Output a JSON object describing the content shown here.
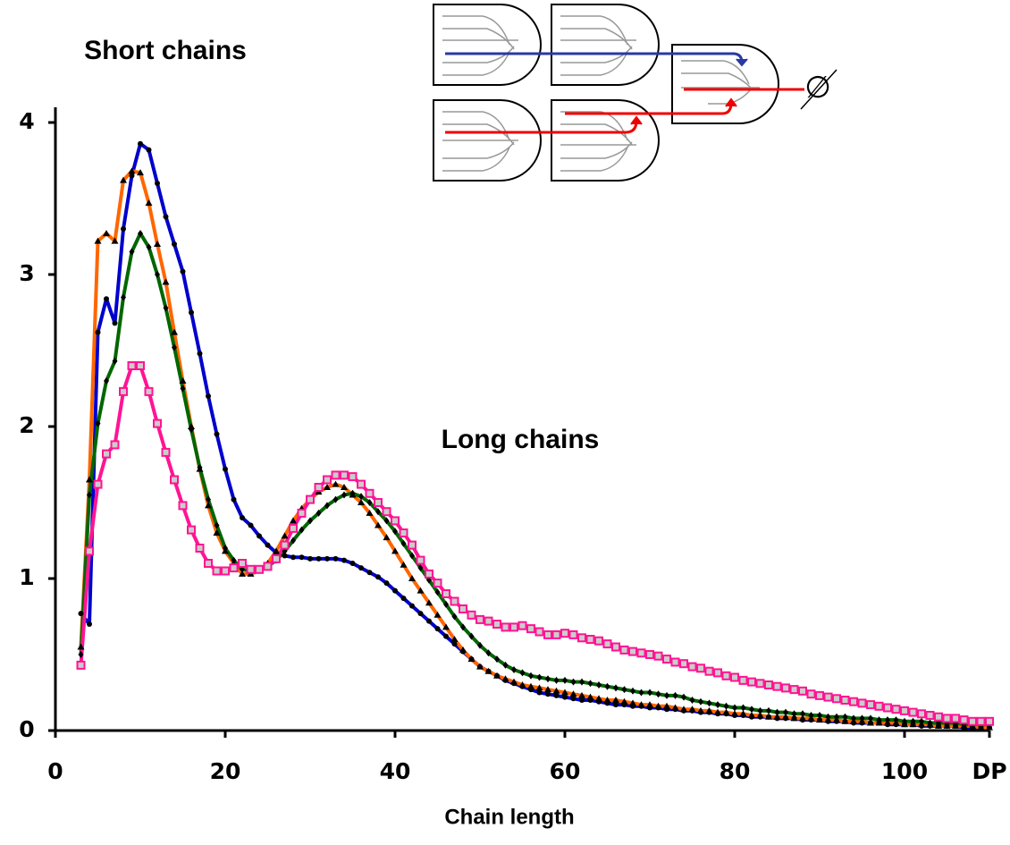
{
  "chart_data": {
    "type": "line",
    "title": "Short chains",
    "annotation": "Long chains",
    "null_symbol": "∅",
    "x_label": "Chain length",
    "xlim": [
      0,
      110
    ],
    "ylim": [
      0,
      4.1
    ],
    "xticks": [
      0,
      20,
      40,
      60,
      80,
      100,
      {
        "value": 110,
        "label": "DP"
      }
    ],
    "yticks": [
      0,
      1,
      2,
      3,
      4
    ],
    "x": [
      3,
      4,
      5,
      6,
      7,
      8,
      9,
      10,
      11,
      12,
      13,
      14,
      15,
      16,
      17,
      18,
      19,
      20,
      21,
      22,
      23,
      24,
      25,
      26,
      27,
      28,
      29,
      30,
      31,
      32,
      33,
      34,
      35,
      36,
      37,
      38,
      39,
      40,
      41,
      42,
      43,
      44,
      45,
      46,
      47,
      48,
      49,
      50,
      51,
      52,
      53,
      54,
      55,
      56,
      57,
      58,
      59,
      60,
      61,
      62,
      63,
      64,
      65,
      66,
      67,
      68,
      69,
      70,
      71,
      72,
      73,
      74,
      75,
      76,
      77,
      78,
      79,
      80,
      81,
      82,
      83,
      84,
      85,
      86,
      87,
      88,
      89,
      90,
      91,
      92,
      93,
      94,
      95,
      96,
      97,
      98,
      99,
      100,
      101,
      102,
      103,
      104,
      105,
      106,
      107,
      108,
      109,
      110
    ],
    "series": [
      {
        "color": "#0000cc",
        "marker": "circle",
        "values": [
          0.77,
          0.7,
          2.62,
          2.84,
          2.68,
          3.3,
          3.65,
          3.86,
          3.82,
          3.6,
          3.38,
          3.2,
          3.02,
          2.75,
          2.48,
          2.2,
          1.95,
          1.72,
          1.52,
          1.4,
          1.35,
          1.28,
          1.22,
          1.17,
          1.15,
          1.14,
          1.14,
          1.13,
          1.13,
          1.13,
          1.13,
          1.12,
          1.1,
          1.07,
          1.04,
          1.01,
          0.97,
          0.92,
          0.87,
          0.82,
          0.77,
          0.72,
          0.67,
          0.62,
          0.57,
          0.52,
          0.47,
          0.42,
          0.39,
          0.36,
          0.33,
          0.31,
          0.29,
          0.27,
          0.25,
          0.24,
          0.23,
          0.22,
          0.21,
          0.2,
          0.2,
          0.19,
          0.18,
          0.17,
          0.17,
          0.16,
          0.16,
          0.15,
          0.15,
          0.14,
          0.14,
          0.13,
          0.13,
          0.12,
          0.12,
          0.11,
          0.11,
          0.1,
          0.1,
          0.09,
          0.09,
          0.09,
          0.08,
          0.08,
          0.08,
          0.07,
          0.07,
          0.07,
          0.06,
          0.06,
          0.06,
          0.05,
          0.05,
          0.05,
          0.05,
          0.04,
          0.04,
          0.04,
          0.04,
          0.03,
          0.03,
          0.03,
          0.03,
          0.03,
          0.02,
          0.02,
          0.02,
          0.02
        ]
      },
      {
        "color": "#ff6600",
        "marker": "triangle",
        "values": [
          0.55,
          1.65,
          3.22,
          3.27,
          3.22,
          3.62,
          3.68,
          3.67,
          3.47,
          3.2,
          2.95,
          2.62,
          2.3,
          2.0,
          1.72,
          1.48,
          1.3,
          1.18,
          1.1,
          1.03,
          1.03,
          1.05,
          1.1,
          1.18,
          1.28,
          1.38,
          1.46,
          1.52,
          1.57,
          1.6,
          1.62,
          1.6,
          1.55,
          1.5,
          1.43,
          1.35,
          1.27,
          1.18,
          1.09,
          1.0,
          0.92,
          0.84,
          0.76,
          0.68,
          0.6,
          0.53,
          0.47,
          0.42,
          0.39,
          0.36,
          0.34,
          0.32,
          0.3,
          0.29,
          0.28,
          0.27,
          0.26,
          0.25,
          0.24,
          0.23,
          0.22,
          0.21,
          0.2,
          0.2,
          0.19,
          0.18,
          0.17,
          0.17,
          0.16,
          0.16,
          0.15,
          0.14,
          0.14,
          0.13,
          0.13,
          0.12,
          0.12,
          0.11,
          0.11,
          0.1,
          0.1,
          0.09,
          0.09,
          0.09,
          0.08,
          0.08,
          0.08,
          0.07,
          0.07,
          0.07,
          0.06,
          0.06,
          0.06,
          0.05,
          0.05,
          0.05,
          0.05,
          0.04,
          0.04,
          0.04,
          0.04,
          0.03,
          0.03,
          0.03,
          0.03,
          0.03,
          0.02,
          0.02
        ]
      },
      {
        "color": "#006600",
        "marker": "diamond",
        "values": [
          0.5,
          1.55,
          2.02,
          2.3,
          2.43,
          2.85,
          3.15,
          3.27,
          3.18,
          3.0,
          2.78,
          2.52,
          2.25,
          1.98,
          1.73,
          1.52,
          1.35,
          1.2,
          1.12,
          1.06,
          1.05,
          1.06,
          1.08,
          1.12,
          1.18,
          1.25,
          1.32,
          1.38,
          1.43,
          1.48,
          1.52,
          1.55,
          1.56,
          1.54,
          1.5,
          1.44,
          1.38,
          1.31,
          1.23,
          1.15,
          1.07,
          0.99,
          0.91,
          0.83,
          0.75,
          0.68,
          0.62,
          0.56,
          0.51,
          0.47,
          0.43,
          0.4,
          0.38,
          0.36,
          0.35,
          0.34,
          0.33,
          0.33,
          0.32,
          0.32,
          0.31,
          0.3,
          0.29,
          0.28,
          0.27,
          0.26,
          0.25,
          0.25,
          0.24,
          0.23,
          0.23,
          0.22,
          0.2,
          0.19,
          0.18,
          0.17,
          0.16,
          0.15,
          0.15,
          0.14,
          0.13,
          0.13,
          0.12,
          0.12,
          0.11,
          0.11,
          0.1,
          0.1,
          0.09,
          0.09,
          0.09,
          0.08,
          0.08,
          0.08,
          0.07,
          0.07,
          0.07,
          0.06,
          0.06,
          0.06,
          0.05,
          0.05,
          0.05,
          0.05,
          0.04,
          0.04,
          0.04,
          0.04
        ]
      },
      {
        "color": "#ff1493",
        "marker": "square",
        "values": [
          0.43,
          1.18,
          1.62,
          1.82,
          1.88,
          2.23,
          2.4,
          2.4,
          2.23,
          2.02,
          1.83,
          1.65,
          1.48,
          1.32,
          1.2,
          1.1,
          1.05,
          1.05,
          1.07,
          1.1,
          1.06,
          1.06,
          1.08,
          1.13,
          1.22,
          1.33,
          1.43,
          1.52,
          1.6,
          1.65,
          1.68,
          1.68,
          1.67,
          1.62,
          1.56,
          1.5,
          1.44,
          1.38,
          1.3,
          1.22,
          1.12,
          1.03,
          0.97,
          0.9,
          0.85,
          0.8,
          0.76,
          0.73,
          0.72,
          0.7,
          0.68,
          0.68,
          0.69,
          0.67,
          0.65,
          0.63,
          0.63,
          0.64,
          0.63,
          0.61,
          0.6,
          0.59,
          0.57,
          0.55,
          0.53,
          0.52,
          0.51,
          0.5,
          0.49,
          0.47,
          0.45,
          0.44,
          0.42,
          0.41,
          0.39,
          0.38,
          0.36,
          0.35,
          0.33,
          0.32,
          0.31,
          0.3,
          0.29,
          0.28,
          0.27,
          0.26,
          0.24,
          0.23,
          0.22,
          0.21,
          0.2,
          0.19,
          0.18,
          0.17,
          0.16,
          0.15,
          0.14,
          0.13,
          0.12,
          0.11,
          0.1,
          0.09,
          0.08,
          0.08,
          0.07,
          0.06,
          0.06,
          0.06
        ]
      }
    ]
  }
}
